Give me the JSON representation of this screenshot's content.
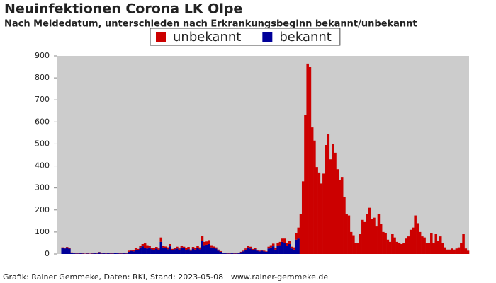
{
  "chart_data": {
    "type": "bar",
    "stacked": true,
    "title": "Neuinfektionen Corona LK Olpe",
    "subtitle": "Nach Meldedatum, unterschieden nach Erkrankungsbeginn bekannt/unbekannt",
    "footer": "Grafik: Rainer Gemmeke, Daten: RKI, Stand: 2023-05-08 | www.rainer-gemmeke.de",
    "legend_position": "top",
    "categories": [
      null,
      null,
      null,
      null,
      null,
      null,
      null,
      null,
      null,
      null,
      null,
      null,
      null,
      null,
      null,
      null,
      null,
      null,
      null,
      null,
      null,
      null,
      null,
      null,
      null,
      null,
      null,
      null,
      null,
      null,
      null,
      null,
      null,
      null,
      null,
      null,
      null,
      null,
      null,
      null,
      null,
      null,
      null,
      null,
      null,
      null,
      null,
      null,
      null,
      null,
      null,
      null,
      null,
      null,
      null,
      null,
      null,
      null,
      null,
      null,
      null,
      null,
      null,
      null,
      null,
      null,
      null,
      null,
      null,
      null,
      null,
      null,
      null,
      null,
      null,
      null,
      null,
      null,
      null,
      null,
      null,
      null,
      null,
      null,
      null,
      null,
      null,
      null,
      null,
      null,
      null,
      null,
      null,
      null,
      null,
      null,
      null,
      null,
      null,
      null,
      null,
      null,
      null,
      null,
      null,
      null,
      null,
      null,
      null,
      null,
      null,
      null,
      null,
      null,
      null,
      null,
      null,
      null,
      null,
      null,
      null,
      null,
      null,
      null,
      null,
      null,
      null,
      null,
      null,
      null,
      null,
      null,
      null,
      null,
      null,
      null,
      null,
      null,
      null,
      null,
      null,
      null,
      null,
      null,
      null,
      null,
      null,
      null,
      null,
      null,
      null,
      null,
      null,
      null,
      null,
      null,
      null,
      null,
      null,
      null,
      null,
      null,
      null,
      null,
      null,
      null,
      null,
      null,
      null,
      null,
      null,
      null,
      null,
      null,
      null,
      null,
      null,
      null,
      null,
      null
    ],
    "series": [
      {
        "name": "unbekannt",
        "color": "#cc0000",
        "values": [
          0,
          0,
          2,
          3,
          2,
          3,
          1,
          1,
          1,
          1,
          1,
          1,
          1,
          1,
          1,
          1,
          1,
          1,
          1,
          1,
          1,
          1,
          1,
          1,
          1,
          1,
          1,
          1,
          1,
          1,
          1,
          5,
          5,
          4,
          6,
          5,
          8,
          10,
          20,
          15,
          8,
          6,
          10,
          8,
          5,
          20,
          8,
          6,
          8,
          10,
          5,
          6,
          8,
          5,
          6,
          5,
          8,
          10,
          5,
          8,
          6,
          10,
          8,
          22,
          15,
          15,
          18,
          10,
          8,
          6,
          5,
          3,
          1,
          1,
          1,
          1,
          1,
          1,
          1,
          1,
          2,
          3,
          5,
          6,
          8,
          5,
          6,
          3,
          3,
          4,
          3,
          2,
          8,
          10,
          12,
          8,
          12,
          15,
          15,
          20,
          12,
          15,
          8,
          10,
          30,
          50,
          180,
          330,
          630,
          865,
          850,
          575,
          515,
          395,
          370,
          320,
          365,
          495,
          545,
          430,
          500,
          460,
          385,
          335,
          350,
          260,
          180,
          175,
          100,
          85,
          50,
          50,
          90,
          155,
          145,
          180,
          210,
          160,
          165,
          125,
          180,
          135,
          100,
          95,
          65,
          55,
          90,
          75,
          55,
          50,
          45,
          50,
          70,
          80,
          110,
          120,
          175,
          140,
          100,
          80,
          75,
          50,
          50,
          95,
          50,
          90,
          60,
          80,
          50,
          30,
          20,
          20,
          25,
          20,
          25,
          30,
          50,
          90,
          25,
          15
        ]
      },
      {
        "name": "bekannt",
        "color": "#000099",
        "values": [
          0,
          0,
          28,
          25,
          30,
          24,
          6,
          3,
          2,
          2,
          3,
          2,
          1,
          2,
          1,
          2,
          3,
          2,
          8,
          2,
          3,
          2,
          3,
          2,
          2,
          4,
          3,
          2,
          2,
          3,
          2,
          10,
          14,
          12,
          20,
          18,
          30,
          35,
          28,
          25,
          30,
          22,
          18,
          24,
          20,
          55,
          30,
          28,
          22,
          35,
          18,
          22,
          25,
          20,
          30,
          28,
          18,
          22,
          15,
          24,
          20,
          28,
          22,
          60,
          40,
          42,
          45,
          30,
          26,
          24,
          15,
          10,
          3,
          3,
          2,
          2,
          3,
          2,
          2,
          3,
          8,
          12,
          20,
          30,
          25,
          18,
          22,
          15,
          12,
          15,
          12,
          10,
          25,
          30,
          35,
          20,
          38,
          40,
          55,
          50,
          38,
          45,
          25,
          20,
          65,
          70,
          0,
          0,
          0,
          0,
          0,
          0,
          0,
          0,
          0,
          0,
          0,
          0,
          0,
          0,
          0,
          0,
          0,
          0,
          0,
          0,
          0,
          0,
          0,
          0,
          0,
          0,
          0,
          0,
          0,
          0,
          0,
          0,
          0,
          0,
          0,
          0,
          0,
          0,
          0,
          0,
          0,
          0,
          0,
          0,
          0,
          0,
          0,
          0,
          0,
          0,
          0,
          0,
          0,
          0,
          0,
          0,
          0,
          0,
          0,
          0,
          0,
          0,
          0,
          0,
          0,
          0,
          0,
          0,
          0,
          0,
          0,
          0,
          0,
          0
        ]
      }
    ],
    "ylim": [
      0,
      900
    ],
    "yticks": [
      0,
      100,
      200,
      300,
      400,
      500,
      600,
      700,
      800,
      900
    ],
    "grid": false
  }
}
